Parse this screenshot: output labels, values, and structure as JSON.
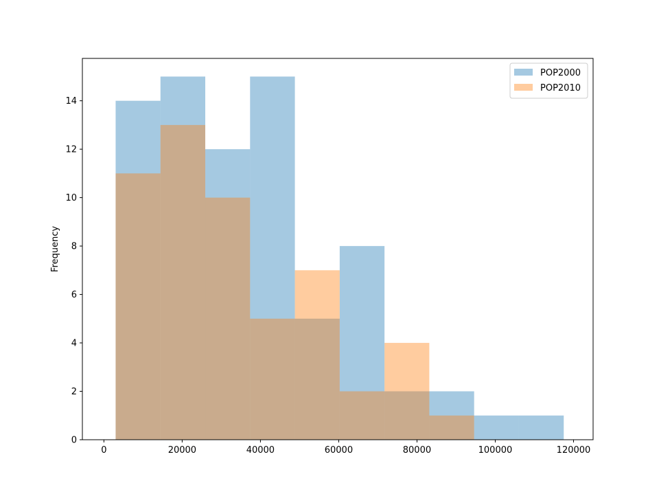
{
  "chart_data": {
    "type": "histogram",
    "title": "",
    "xlabel": "",
    "ylabel": "Frequency",
    "xlim": [
      -5500,
      125000
    ],
    "ylim": [
      0,
      15.75
    ],
    "xticks": [
      0,
      20000,
      40000,
      60000,
      80000,
      100000,
      120000
    ],
    "yticks": [
      0,
      2,
      4,
      6,
      8,
      10,
      12,
      14
    ],
    "grid": false,
    "legend_position": "top-right",
    "series": [
      {
        "name": "POP2000",
        "color": "#1f77b4",
        "opacity": 0.4,
        "bin_edges": [
          3000,
          14450,
          25900,
          37350,
          48800,
          60250,
          71700,
          83150,
          94600,
          106050,
          117500
        ],
        "counts": [
          14,
          15,
          12,
          15,
          5,
          8,
          2,
          2,
          1,
          1
        ]
      },
      {
        "name": "POP2010",
        "color": "#ff7f0e",
        "opacity": 0.4,
        "bin_edges": [
          3000,
          14450,
          25900,
          37350,
          48800,
          60250,
          71700,
          83150,
          94600
        ],
        "counts": [
          11,
          13,
          10,
          5,
          7,
          2,
          4,
          1
        ]
      }
    ]
  }
}
